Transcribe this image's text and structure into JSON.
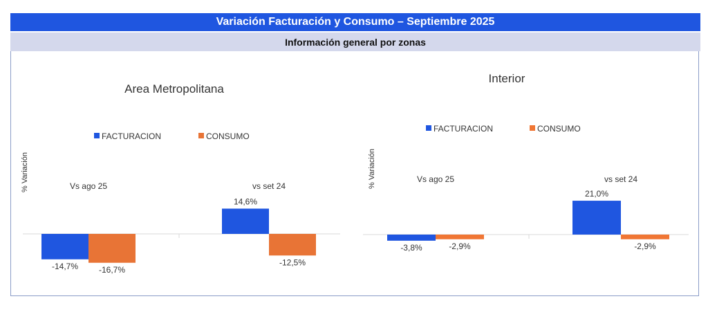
{
  "header": {
    "title": "Variación Facturación y Consumo –  Septiembre 2025",
    "subtitle": "Información general por zonas"
  },
  "colors": {
    "facturacion": "#1f56e0",
    "consumo_metro": "#e87436",
    "consumo_interior": "#f07634"
  },
  "chart_data": [
    {
      "type": "bar",
      "title": "Area Metropolitana",
      "ylabel": "% Variación",
      "categories": [
        "Vs ago 25",
        "vs set 24"
      ],
      "series": [
        {
          "name": "FACTURACION",
          "values": [
            -14.7,
            14.6
          ],
          "labels": [
            "-14,7%",
            "14,6%"
          ]
        },
        {
          "name": "CONSUMO",
          "values": [
            -16.7,
            -12.5
          ],
          "labels": [
            "-16,7%",
            "-12,5%"
          ]
        }
      ],
      "legend": "top-center",
      "grid": false
    },
    {
      "type": "bar",
      "title": "Interior",
      "ylabel": "% Variación",
      "categories": [
        "Vs ago 25",
        "vs set 24"
      ],
      "series": [
        {
          "name": "FACTURACION",
          "values": [
            -3.8,
            21.0
          ],
          "labels": [
            "-3,8%",
            "21,0%"
          ]
        },
        {
          "name": "CONSUMO",
          "values": [
            -2.9,
            -2.9
          ],
          "labels": [
            "-2,9%",
            "-2,9%"
          ]
        }
      ],
      "legend": "top-center",
      "grid": false
    }
  ]
}
